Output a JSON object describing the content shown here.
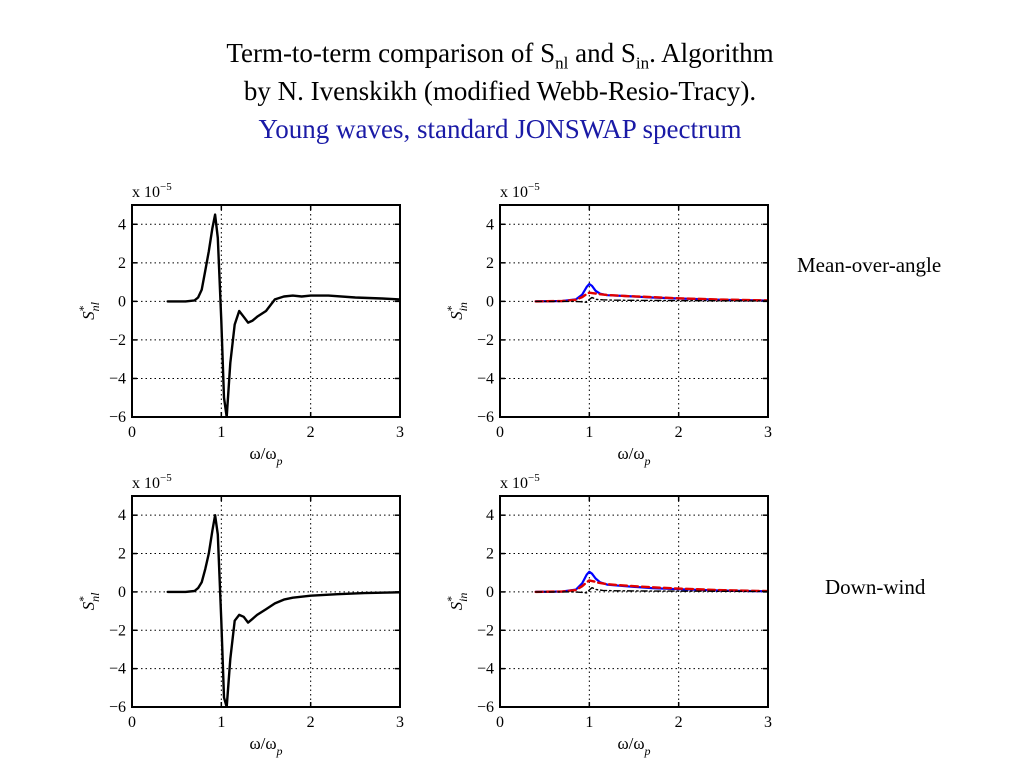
{
  "title": {
    "line1_prefix": "Term-to-term comparison of S",
    "line1_sub1": "nl",
    "line1_mid": " and S",
    "line1_sub2": "in",
    "line1_suffix": ". Algorithm",
    "line2": "by N. Ivenskikh (modified Webb-Resio-Tracy).",
    "line3": "Young waves, standard JONSWAP spectrum"
  },
  "row_labels": [
    "Mean-over-angle",
    "Down-wind"
  ],
  "colors": {
    "subtitle": "#1a1aa6",
    "black": "#000000",
    "blue": "#0000ff",
    "red": "#e00000"
  },
  "chart_data": [
    {
      "type": "line",
      "id": "snl-mean",
      "xlabel": "ω/ω",
      "xlabel_sub": "p",
      "ylabel": "S",
      "ylabel_sup": "*",
      "ylabel_sub": "nl",
      "scale_label": "x 10",
      "scale_exp": "−5",
      "xlim": [
        0,
        3
      ],
      "ylim": [
        -6,
        5
      ],
      "xticks": [
        0,
        1,
        2,
        3
      ],
      "yticks": [
        -6,
        -4,
        -2,
        0,
        2,
        4
      ],
      "ytick_labels": [
        "−6",
        "−4",
        "−2",
        "0",
        "2",
        "4"
      ],
      "grid": true,
      "series": [
        {
          "color": "#000000",
          "style": "solid",
          "width": 2.4,
          "x": [
            0.4,
            0.6,
            0.7,
            0.74,
            0.78,
            0.82,
            0.86,
            0.9,
            0.93,
            0.96,
            1.0,
            1.03,
            1.06,
            1.1,
            1.15,
            1.2,
            1.25,
            1.3,
            1.35,
            1.4,
            1.5,
            1.6,
            1.7,
            1.8,
            1.9,
            2.0,
            2.2,
            2.5,
            2.8,
            3.0
          ],
          "y": [
            0.0,
            0.0,
            0.05,
            0.2,
            0.6,
            1.6,
            2.6,
            3.8,
            4.5,
            3.3,
            -1.0,
            -5.0,
            -6.0,
            -3.2,
            -1.2,
            -0.5,
            -0.8,
            -1.1,
            -1.0,
            -0.8,
            -0.5,
            0.1,
            0.25,
            0.3,
            0.25,
            0.3,
            0.3,
            0.2,
            0.15,
            0.1
          ]
        }
      ]
    },
    {
      "type": "line",
      "id": "sin-mean",
      "xlabel": "ω/ω",
      "xlabel_sub": "p",
      "ylabel": "S",
      "ylabel_sup": "*",
      "ylabel_sub": "in",
      "scale_label": "x 10",
      "scale_exp": "−5",
      "xlim": [
        0,
        3
      ],
      "ylim": [
        -6,
        5
      ],
      "xticks": [
        0,
        1,
        2,
        3
      ],
      "yticks": [
        -6,
        -4,
        -2,
        0,
        2,
        4
      ],
      "ytick_labels": [
        "−6",
        "−4",
        "−2",
        "0",
        "2",
        "4"
      ],
      "grid": true,
      "series": [
        {
          "color": "#0000ff",
          "style": "solid",
          "width": 2.2,
          "x": [
            0.4,
            0.7,
            0.85,
            0.92,
            0.97,
            1.0,
            1.03,
            1.07,
            1.12,
            1.2,
            1.4,
            1.7,
            2.0,
            2.5,
            3.0
          ],
          "y": [
            0.0,
            0.02,
            0.1,
            0.35,
            0.75,
            0.9,
            0.8,
            0.55,
            0.4,
            0.32,
            0.28,
            0.2,
            0.15,
            0.08,
            0.04
          ]
        },
        {
          "color": "#e00000",
          "style": "dashed",
          "width": 2.4,
          "x": [
            0.4,
            0.7,
            0.85,
            0.92,
            0.97,
            1.0,
            1.05,
            1.1,
            1.2,
            1.4,
            1.7,
            2.0,
            2.5,
            3.0
          ],
          "y": [
            0.0,
            0.02,
            0.08,
            0.22,
            0.38,
            0.45,
            0.42,
            0.38,
            0.33,
            0.28,
            0.22,
            0.16,
            0.09,
            0.05
          ]
        },
        {
          "color": "#000000",
          "style": "dashdot",
          "width": 1.4,
          "x": [
            0.4,
            0.8,
            0.9,
            0.97,
            1.0,
            1.03,
            1.08,
            1.15,
            1.3,
            1.6,
            2.0,
            2.5,
            3.0
          ],
          "y": [
            0.0,
            0.0,
            -0.02,
            -0.05,
            0.1,
            0.2,
            0.1,
            0.08,
            0.06,
            0.05,
            0.04,
            0.03,
            0.02
          ]
        }
      ]
    },
    {
      "type": "line",
      "id": "snl-down",
      "xlabel": "ω/ω",
      "xlabel_sub": "p",
      "ylabel": "S",
      "ylabel_sup": "*",
      "ylabel_sub": "nl",
      "scale_label": "x 10",
      "scale_exp": "−5",
      "xlim": [
        0,
        3
      ],
      "ylim": [
        -6,
        5
      ],
      "xticks": [
        0,
        1,
        2,
        3
      ],
      "yticks": [
        -6,
        -4,
        -2,
        0,
        2,
        4
      ],
      "ytick_labels": [
        "−6",
        "−4",
        "−2",
        "0",
        "2",
        "4"
      ],
      "grid": true,
      "series": [
        {
          "color": "#000000",
          "style": "solid",
          "width": 2.4,
          "x": [
            0.4,
            0.6,
            0.7,
            0.74,
            0.78,
            0.82,
            0.86,
            0.9,
            0.93,
            0.96,
            1.0,
            1.03,
            1.06,
            1.1,
            1.15,
            1.2,
            1.25,
            1.3,
            1.35,
            1.4,
            1.5,
            1.6,
            1.7,
            1.8,
            2.0,
            2.3,
            2.6,
            3.0
          ],
          "y": [
            0.0,
            0.0,
            0.05,
            0.2,
            0.5,
            1.2,
            2.0,
            3.2,
            4.0,
            3.0,
            -1.5,
            -5.5,
            -6.0,
            -3.5,
            -1.5,
            -1.2,
            -1.3,
            -1.6,
            -1.4,
            -1.2,
            -0.9,
            -0.6,
            -0.4,
            -0.3,
            -0.2,
            -0.12,
            -0.06,
            -0.02
          ]
        }
      ]
    },
    {
      "type": "line",
      "id": "sin-down",
      "xlabel": "ω/ω",
      "xlabel_sub": "p",
      "ylabel": "S",
      "ylabel_sup": "*",
      "ylabel_sub": "in",
      "scale_label": "x 10",
      "scale_exp": "−5",
      "xlim": [
        0,
        3
      ],
      "ylim": [
        -6,
        5
      ],
      "xticks": [
        0,
        1,
        2,
        3
      ],
      "yticks": [
        -6,
        -4,
        -2,
        0,
        2,
        4
      ],
      "ytick_labels": [
        "−6",
        "−4",
        "−2",
        "0",
        "2",
        "4"
      ],
      "grid": true,
      "series": [
        {
          "color": "#0000ff",
          "style": "solid",
          "width": 2.2,
          "x": [
            0.4,
            0.7,
            0.85,
            0.92,
            0.97,
            1.0,
            1.03,
            1.07,
            1.12,
            1.2,
            1.4,
            1.7,
            2.0,
            2.5,
            3.0
          ],
          "y": [
            0.0,
            0.02,
            0.12,
            0.45,
            0.9,
            1.05,
            0.95,
            0.7,
            0.5,
            0.38,
            0.3,
            0.2,
            0.14,
            0.07,
            0.03
          ]
        },
        {
          "color": "#e00000",
          "style": "dashed",
          "width": 2.4,
          "x": [
            0.4,
            0.7,
            0.85,
            0.92,
            0.97,
            1.0,
            1.05,
            1.1,
            1.2,
            1.4,
            1.7,
            2.0,
            2.5,
            3.0
          ],
          "y": [
            0.0,
            0.02,
            0.1,
            0.3,
            0.5,
            0.6,
            0.55,
            0.48,
            0.4,
            0.33,
            0.24,
            0.17,
            0.09,
            0.04
          ]
        },
        {
          "color": "#000000",
          "style": "dashdot",
          "width": 1.4,
          "x": [
            0.4,
            0.8,
            0.9,
            0.97,
            1.0,
            1.03,
            1.08,
            1.15,
            1.3,
            1.6,
            2.0,
            2.5,
            3.0
          ],
          "y": [
            0.0,
            0.0,
            -0.02,
            -0.05,
            0.1,
            0.22,
            0.12,
            0.08,
            0.06,
            0.05,
            0.04,
            0.03,
            0.02
          ]
        }
      ]
    }
  ]
}
